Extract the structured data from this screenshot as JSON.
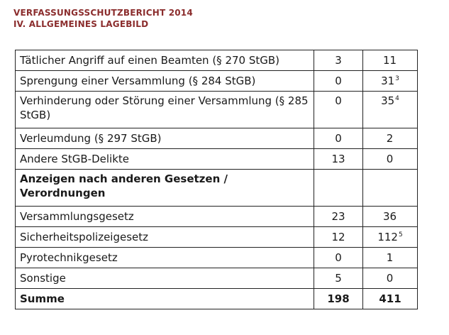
{
  "header": {
    "line1": "VERFASSUNGSSCHUTZBERICHT 2014",
    "line2": "IV. ALLGEMEINES LAGEBILD"
  },
  "rows": [
    {
      "label": "Tätlicher Angriff auf einen Beamten (§ 270 StGB)",
      "a": "3",
      "b": "11",
      "b_sup": ""
    },
    {
      "label": "Sprengung einer Versammlung (§ 284 StGB)",
      "a": "0",
      "b": "31",
      "b_sup": "3"
    },
    {
      "label": "Verhinderung oder Störung einer Versammlung (§ 285 StGB)",
      "a": "0",
      "b": "35",
      "b_sup": "4"
    },
    {
      "label": "Verleumdung (§ 297 StGB)",
      "a": "0",
      "b": "2",
      "b_sup": ""
    },
    {
      "label": "Andere StGB-Delikte",
      "a": "13",
      "b": "0",
      "b_sup": ""
    },
    {
      "label": "Anzeigen nach anderen Gesetzen / Verordnungen",
      "a": "",
      "b": "",
      "b_sup": ""
    },
    {
      "label": "Versammlungsgesetz",
      "a": "23",
      "b": "36",
      "b_sup": ""
    },
    {
      "label": "Sicherheitspolizeigesetz",
      "a": "12",
      "b": "112",
      "b_sup": "5"
    },
    {
      "label": "Pyrotechnikgesetz",
      "a": "0",
      "b": "1",
      "b_sup": ""
    },
    {
      "label": "Sonstige",
      "a": "5",
      "b": "0",
      "b_sup": ""
    },
    {
      "label": "Summe",
      "a": "198",
      "b": "411",
      "b_sup": ""
    }
  ]
}
